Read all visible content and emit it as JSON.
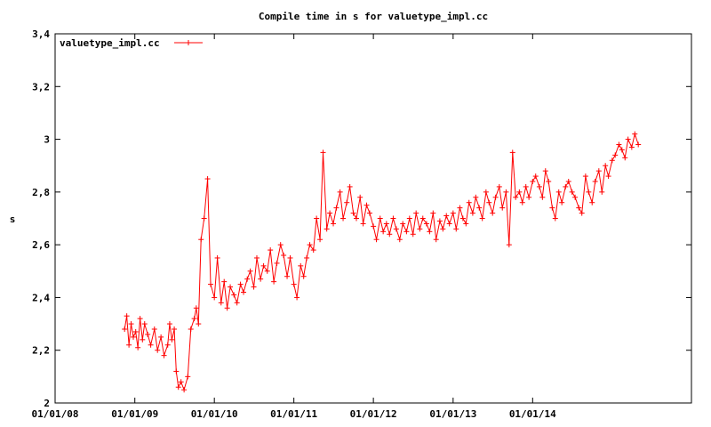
{
  "chart_data": {
    "type": "line",
    "title": "Compile time in s for valuetype_impl.cc",
    "xlabel": "",
    "ylabel": "s",
    "xlim": [
      "2008-01-01",
      "2015-12-31"
    ],
    "ylim": [
      2,
      3.4
    ],
    "yticks": [
      "2",
      "2,2",
      "2,4",
      "2,6",
      "2,8",
      "3",
      "3,2",
      "3,4"
    ],
    "yticks_values": [
      2,
      2.2,
      2.4,
      2.6,
      2.8,
      3.0,
      3.2,
      3.4
    ],
    "xticks": [
      "01/01/08",
      "01/01/09",
      "01/01/10",
      "01/01/11",
      "01/01/12",
      "01/01/13",
      "01/01/14"
    ],
    "xticks_values": [
      "2008-01-01",
      "2009-01-01",
      "2010-01-01",
      "2011-01-01",
      "2012-01-01",
      "2013-01-01",
      "2014-01-01"
    ],
    "legend": "top-left",
    "grid": false,
    "series": [
      {
        "name": "valuetype_impl.cc",
        "color": "#ff0000",
        "marker": "plus",
        "x": [
          "2008-11-15",
          "2008-11-25",
          "2008-12-05",
          "2008-12-15",
          "2008-12-25",
          "2009-01-05",
          "2009-01-15",
          "2009-01-25",
          "2009-02-05",
          "2009-02-15",
          "2009-03-01",
          "2009-03-15",
          "2009-04-01",
          "2009-04-15",
          "2009-05-01",
          "2009-05-15",
          "2009-06-01",
          "2009-06-10",
          "2009-06-20",
          "2009-07-01",
          "2009-07-10",
          "2009-07-20",
          "2009-08-01",
          "2009-08-15",
          "2009-09-01",
          "2009-09-15",
          "2009-10-01",
          "2009-10-10",
          "2009-10-20",
          "2009-11-01",
          "2009-11-15",
          "2009-12-01",
          "2009-12-15",
          "2010-01-01",
          "2010-01-15",
          "2010-02-01",
          "2010-02-15",
          "2010-03-01",
          "2010-03-15",
          "2010-04-01",
          "2010-04-15",
          "2010-05-01",
          "2010-05-15",
          "2010-06-01",
          "2010-06-15",
          "2010-07-01",
          "2010-07-15",
          "2010-08-01",
          "2010-08-15",
          "2010-09-01",
          "2010-09-15",
          "2010-10-01",
          "2010-10-15",
          "2010-11-01",
          "2010-11-15",
          "2010-12-01",
          "2010-12-15",
          "2011-01-01",
          "2011-01-15",
          "2011-02-01",
          "2011-02-15",
          "2011-03-01",
          "2011-03-15",
          "2011-04-01",
          "2011-04-15",
          "2011-05-01",
          "2011-05-15",
          "2011-06-01",
          "2011-06-15",
          "2011-07-01",
          "2011-07-15",
          "2011-08-01",
          "2011-08-15",
          "2011-09-01",
          "2011-09-15",
          "2011-10-01",
          "2011-10-15",
          "2011-11-01",
          "2011-11-15",
          "2011-12-01",
          "2011-12-15",
          "2012-01-01",
          "2012-01-15",
          "2012-02-01",
          "2012-02-15",
          "2012-03-01",
          "2012-03-15",
          "2012-04-01",
          "2012-04-15",
          "2012-05-01",
          "2012-05-15",
          "2012-06-01",
          "2012-06-15",
          "2012-07-01",
          "2012-07-15",
          "2012-08-01",
          "2012-08-15",
          "2012-09-01",
          "2012-09-15",
          "2012-10-01",
          "2012-10-15",
          "2012-11-01",
          "2012-11-15",
          "2012-12-01",
          "2012-12-15",
          "2013-01-01",
          "2013-01-15",
          "2013-02-01",
          "2013-02-15",
          "2013-03-01",
          "2013-03-15",
          "2013-04-01",
          "2013-04-15",
          "2013-05-01",
          "2013-05-15",
          "2013-06-01",
          "2013-06-15",
          "2013-07-01",
          "2013-07-15",
          "2013-08-01",
          "2013-08-15",
          "2013-09-01",
          "2013-09-15",
          "2013-10-01",
          "2013-10-15",
          "2013-11-01",
          "2013-11-15",
          "2013-12-01",
          "2013-12-15",
          "2014-01-01",
          "2014-01-15",
          "2014-02-01",
          "2014-02-15",
          "2014-03-01",
          "2014-03-15",
          "2014-04-01",
          "2014-04-15",
          "2014-05-01",
          "2014-05-15",
          "2014-06-01",
          "2014-06-15",
          "2014-07-01",
          "2014-07-15",
          "2014-08-01",
          "2014-08-15",
          "2014-09-01",
          "2014-09-15",
          "2014-10-01",
          "2014-10-15",
          "2014-11-01",
          "2014-11-15",
          "2014-12-01",
          "2014-12-15",
          "2015-01-01",
          "2015-01-15",
          "2015-02-01",
          "2015-02-15",
          "2015-03-01",
          "2015-03-15",
          "2015-04-01",
          "2015-04-15",
          "2015-05-01"
        ],
        "y": [
          2.28,
          2.33,
          2.22,
          2.3,
          2.25,
          2.27,
          2.21,
          2.32,
          2.24,
          2.3,
          2.26,
          2.22,
          2.28,
          2.2,
          2.25,
          2.18,
          2.22,
          2.3,
          2.24,
          2.28,
          2.12,
          2.06,
          2.08,
          2.05,
          2.1,
          2.28,
          2.32,
          2.36,
          2.3,
          2.62,
          2.7,
          2.85,
          2.45,
          2.4,
          2.55,
          2.38,
          2.46,
          2.36,
          2.44,
          2.41,
          2.38,
          2.45,
          2.42,
          2.47,
          2.5,
          2.44,
          2.55,
          2.47,
          2.52,
          2.5,
          2.58,
          2.46,
          2.53,
          2.6,
          2.56,
          2.48,
          2.55,
          2.45,
          2.4,
          2.52,
          2.48,
          2.55,
          2.6,
          2.58,
          2.7,
          2.62,
          2.95,
          2.66,
          2.72,
          2.68,
          2.74,
          2.8,
          2.7,
          2.76,
          2.82,
          2.72,
          2.7,
          2.78,
          2.68,
          2.75,
          2.72,
          2.67,
          2.62,
          2.7,
          2.65,
          2.68,
          2.64,
          2.7,
          2.66,
          2.62,
          2.68,
          2.65,
          2.7,
          2.64,
          2.72,
          2.66,
          2.7,
          2.68,
          2.65,
          2.72,
          2.62,
          2.69,
          2.66,
          2.71,
          2.68,
          2.72,
          2.66,
          2.74,
          2.7,
          2.68,
          2.76,
          2.72,
          2.78,
          2.74,
          2.7,
          2.8,
          2.76,
          2.72,
          2.78,
          2.82,
          2.74,
          2.8,
          2.6,
          2.95,
          2.78,
          2.8,
          2.76,
          2.82,
          2.78,
          2.84,
          2.86,
          2.82,
          2.78,
          2.88,
          2.84,
          2.74,
          2.7,
          2.8,
          2.76,
          2.82,
          2.84,
          2.8,
          2.78,
          2.74,
          2.72,
          2.86,
          2.8,
          2.76,
          2.84,
          2.88,
          2.8,
          2.9,
          2.86,
          2.92,
          2.94,
          2.98,
          2.96,
          2.93,
          3.0,
          2.97,
          3.02,
          2.98
        ]
      }
    ]
  }
}
